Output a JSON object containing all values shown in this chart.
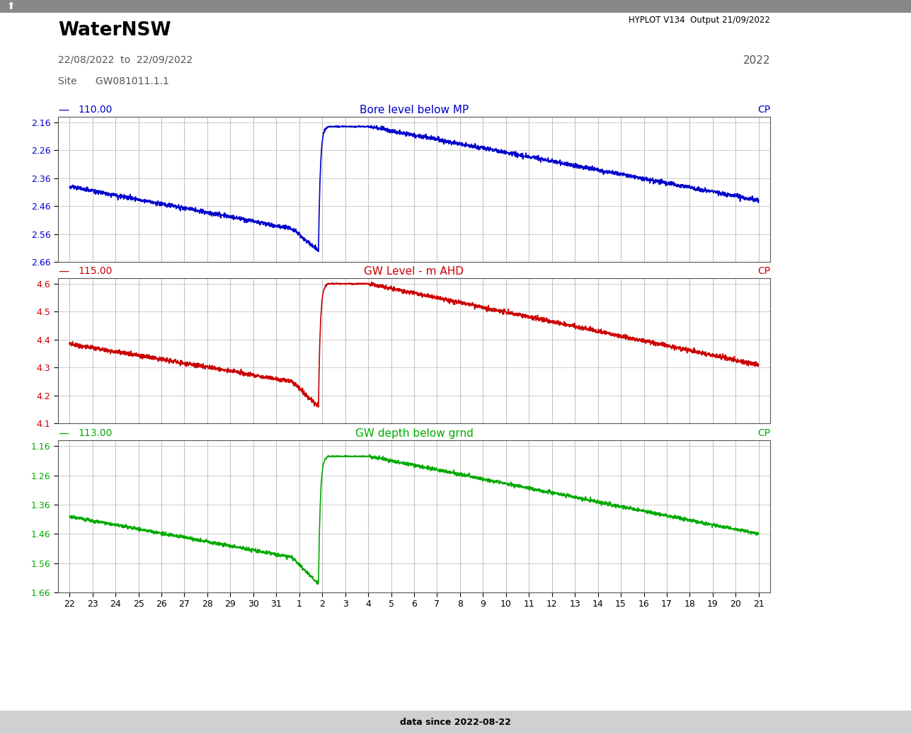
{
  "title": "WaterNSW",
  "hyplot_text": "HYPLOT V134  Output 21/09/2022",
  "date_range": "22/08/2022  to  22/09/2022",
  "site_label": "Site",
  "site": "GW081011.1.1",
  "year": "2022",
  "footer": "data since 2022-08-22",
  "plot1": {
    "line_color": "#0000cc",
    "tag": "110.00",
    "title": "Bore level below MP",
    "cp": "CP",
    "ylim": [
      2.66,
      2.14
    ],
    "yticks": [
      2.16,
      2.26,
      2.36,
      2.46,
      2.56,
      2.66
    ]
  },
  "plot2": {
    "line_color": "#cc0000",
    "tag": "115.00",
    "title": "GW Level - m AHD",
    "cp": "CP",
    "ylim": [
      4.1,
      4.62
    ],
    "yticks": [
      4.6,
      4.5,
      4.4,
      4.3,
      4.2,
      4.1
    ]
  },
  "plot3": {
    "line_color": "#00aa00",
    "tag": "113.00",
    "title": "GW depth below grnd",
    "cp": "CP",
    "ylim": [
      1.66,
      1.14
    ],
    "yticks": [
      1.16,
      1.26,
      1.36,
      1.46,
      1.56,
      1.66
    ]
  },
  "xtick_labels": [
    "22",
    "23",
    "24",
    "25",
    "26",
    "27",
    "28",
    "29",
    "30",
    "31",
    "1",
    "2",
    "3",
    "4",
    "5",
    "6",
    "7",
    "8",
    "9",
    "10",
    "11",
    "12",
    "13",
    "14",
    "15",
    "16",
    "17",
    "18",
    "19",
    "20",
    "21"
  ],
  "fig_bg": "#ffffff",
  "plot_bg": "#ffffff",
  "grid_color": "#bbbbbb",
  "header_bg": "#e8e8e8",
  "footer_bg": "#d8d8d8"
}
